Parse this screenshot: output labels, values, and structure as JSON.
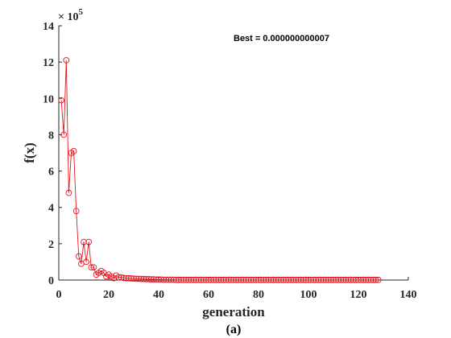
{
  "chart_data": {
    "type": "line",
    "title": "",
    "xlabel": "generation",
    "ylabel": "f(x)",
    "caption": "(a)",
    "y_exponent_base": "10",
    "y_exponent_power": "5",
    "annotation": "Best = 0.000000000007",
    "xlim": [
      0,
      140
    ],
    "ylim": [
      0,
      14
    ],
    "x_ticks": [
      0,
      20,
      40,
      60,
      80,
      100,
      120,
      140
    ],
    "y_ticks": [
      0,
      2,
      4,
      6,
      8,
      10,
      12,
      14
    ],
    "grid": false,
    "box": "left-bottom-only",
    "series": [
      {
        "color": "#e8141b",
        "marker": "circle",
        "x": [
          1,
          2,
          3,
          4,
          5,
          6,
          7,
          8,
          9,
          10,
          11,
          12,
          13,
          14,
          15,
          16,
          17,
          18,
          19,
          20,
          21,
          22,
          23,
          24,
          25,
          26,
          27,
          28,
          29,
          30,
          31,
          32,
          33,
          34,
          35,
          36,
          37,
          38,
          39,
          40,
          41,
          42,
          43,
          44,
          45,
          46,
          47,
          48,
          49,
          50,
          51,
          52,
          53,
          54,
          55,
          56,
          57,
          58,
          59,
          60,
          61,
          62,
          63,
          64,
          65,
          66,
          67,
          68,
          69,
          70,
          71,
          72,
          73,
          74,
          75,
          76,
          77,
          78,
          79,
          80,
          81,
          82,
          83,
          84,
          85,
          86,
          87,
          88,
          89,
          90,
          91,
          92,
          93,
          94,
          95,
          96,
          97,
          98,
          99,
          100,
          101,
          102,
          103,
          104,
          105,
          106,
          107,
          108,
          109,
          110,
          111,
          112,
          113,
          114,
          115,
          116,
          117,
          118,
          119,
          120,
          121,
          122,
          123,
          124,
          125,
          126,
          127,
          128
        ],
        "y": [
          9.9,
          8.0,
          12.1,
          4.8,
          7.0,
          7.1,
          3.8,
          1.3,
          0.9,
          2.1,
          1.0,
          2.1,
          0.7,
          0.7,
          0.3,
          0.4,
          0.5,
          0.4,
          0.2,
          0.3,
          0.2,
          0.1,
          0.25,
          0.15,
          0.15,
          0.12,
          0.1,
          0.1,
          0.09,
          0.08,
          0.07,
          0.07,
          0.06,
          0.06,
          0.05,
          0.05,
          0.04,
          0.04,
          0.03,
          0.03,
          0.03,
          0.02,
          0.02,
          0.02,
          0.02,
          0.02,
          0.01,
          0.01,
          0.01,
          0.01,
          0.01,
          0.01,
          0.01,
          0.01,
          0.01,
          0.01,
          0.01,
          0.01,
          0.01,
          0.01,
          0.01,
          0.01,
          0.01,
          0.01,
          0.01,
          0.01,
          0.01,
          0.01,
          0.01,
          0.01,
          0.01,
          0.01,
          0.01,
          0.01,
          0.01,
          0.01,
          0.01,
          0.01,
          0.01,
          0.01,
          0.01,
          0.01,
          0.01,
          0.01,
          0.01,
          0.01,
          0.01,
          0.01,
          0.01,
          0.01,
          0.01,
          0.01,
          0.01,
          0.01,
          0.01,
          0.01,
          0.01,
          0.01,
          0.01,
          0.01,
          0.01,
          0.01,
          0.01,
          0.01,
          0.01,
          0.01,
          0.01,
          0.01,
          0.01,
          0.01,
          0.01,
          0.01,
          0.01,
          0.01,
          0.01,
          0.01,
          0.01,
          0.01,
          0.01,
          0.01,
          0.01,
          0.01,
          0.01,
          0.01,
          0.01,
          0.01,
          0.01,
          0.01
        ]
      }
    ]
  }
}
